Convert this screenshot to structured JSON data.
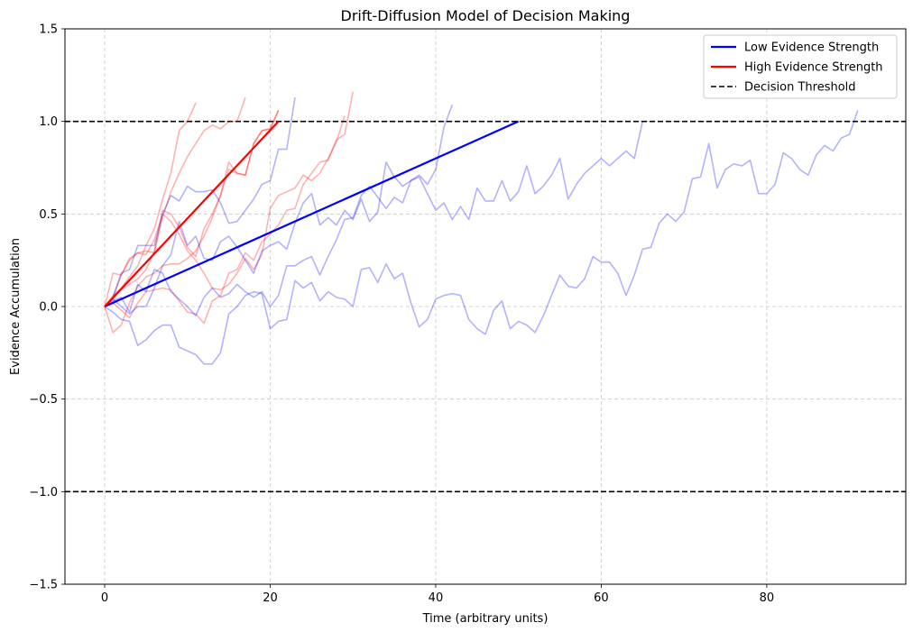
{
  "chart_data": {
    "type": "line",
    "title": "Drift-Diffusion Model of Decision Making",
    "xlabel": "Time (arbitrary units)",
    "ylabel": "Evidence Accumulation",
    "xlim": [
      -4.8,
      96.8
    ],
    "ylim": [
      -1.5,
      1.5
    ],
    "xticks": [
      0,
      20,
      40,
      60,
      80
    ],
    "yticks": [
      -1.5,
      -1.0,
      -0.5,
      0.0,
      0.5,
      1.0,
      1.5
    ],
    "xtick_labels": [
      "0",
      "20",
      "40",
      "60",
      "80"
    ],
    "ytick_labels": [
      "−1.5",
      "−1.0",
      "−0.5",
      "0.0",
      "0.5",
      "1.0",
      "1.5"
    ],
    "grid": true,
    "legend_position": "top-right",
    "colors": {
      "low": "#0000ff",
      "high": "#ff0000",
      "threshold": "#000000",
      "grid": "#b0b0b0"
    },
    "legend": [
      {
        "label": "Low Evidence Strength",
        "style": "solid",
        "color": "#0000ff"
      },
      {
        "label": "High Evidence Strength",
        "style": "solid",
        "color": "#ff0000"
      },
      {
        "label": "Decision Threshold",
        "style": "dashed",
        "color": "#000000"
      }
    ],
    "thresholds": [
      1.0,
      -1.0
    ],
    "mean_lines": [
      {
        "name": "Low Evidence Strength",
        "color": "#0000ff",
        "points": [
          [
            0,
            0
          ],
          [
            50,
            1.0
          ]
        ]
      },
      {
        "name": "High Evidence Strength",
        "color": "#ff0000",
        "points": [
          [
            0,
            0
          ],
          [
            21,
            1.0
          ]
        ]
      }
    ],
    "trials": [
      {
        "group": "high",
        "values": [
          0,
          0.05,
          0.17,
          0.26,
          0.29,
          0.3,
          0.29,
          0.52,
          0.5,
          0.43,
          0.32,
          0.27,
          0.42,
          0.5,
          0.6,
          0.74,
          0.72,
          0.71,
          0.88,
          0.95,
          0.96,
          1.06
        ]
      },
      {
        "group": "high",
        "values": [
          0,
          0.18,
          0.17,
          0.25,
          0.29,
          0.28,
          0.36,
          0.5,
          0.46,
          0.39,
          0.3,
          0.25,
          0.18,
          0.1,
          0.09,
          0.12,
          0.18,
          0.26,
          0.2,
          0.28,
          0.53,
          0.6,
          0.62,
          0.64,
          0.71,
          0.68,
          0.72,
          0.8,
          0.89,
          1.03
        ]
      },
      {
        "group": "high",
        "values": [
          0,
          -0.14,
          -0.1,
          0.02,
          0.11,
          0.16,
          0.18,
          0.22,
          0.23,
          0.23,
          0.26,
          0.3,
          0.38,
          0.48,
          0.6,
          0.78,
          0.72,
          0.71,
          0.88,
          0.95,
          0.96,
          1.06
        ]
      },
      {
        "group": "high",
        "values": [
          0,
          0.06,
          0.1,
          0.16,
          0.22,
          0.33,
          0.42,
          0.58,
          0.72,
          0.95,
          1.0,
          1.1
        ]
      },
      {
        "group": "high",
        "values": [
          0,
          0.04,
          0.09,
          0.12,
          0.15,
          0.2,
          0.3,
          0.48,
          0.62,
          0.72,
          0.81,
          0.88,
          0.95,
          0.98,
          0.96,
          1.0,
          1.0,
          1.13
        ]
      },
      {
        "group": "high",
        "values": [
          0,
          0.02,
          -0.02,
          -0.06,
          0.02,
          0.08,
          0.09,
          0.1,
          0.09,
          0.03,
          -0.03,
          -0.04,
          -0.09,
          0.03,
          0.06,
          0.18,
          0.2,
          0.29,
          0.25,
          0.35,
          0.39,
          0.44,
          0.52,
          0.53,
          0.66,
          0.72,
          0.78,
          0.79,
          0.9,
          0.93,
          1.16
        ]
      },
      {
        "group": "low",
        "values": [
          0,
          0.05,
          0.18,
          0.2,
          0.33,
          0.33,
          0.33,
          0.5,
          0.6,
          0.57,
          0.65,
          0.62,
          0.62,
          0.63,
          0.56,
          0.45,
          0.46,
          0.52,
          0.58,
          0.66,
          0.68,
          0.85,
          0.85,
          1.13
        ]
      },
      {
        "group": "low",
        "values": [
          0,
          0.04,
          0.0,
          -0.04,
          0.0,
          0.0,
          0.1,
          0.22,
          0.28,
          0.46,
          0.33,
          0.38,
          0.26,
          0.25,
          0.35,
          0.38,
          0.32,
          0.25,
          0.18,
          0.3,
          0.33,
          0.35,
          0.31,
          0.45,
          0.56,
          0.61,
          0.44,
          0.48,
          0.44,
          0.52,
          0.47,
          0.58,
          0.46,
          0.51,
          0.78,
          0.7,
          0.65,
          0.68,
          0.71,
          0.66,
          0.74,
          0.97,
          1.09
        ]
      },
      {
        "group": "low",
        "values": [
          0,
          -0.03,
          -0.07,
          -0.08,
          -0.21,
          -0.18,
          -0.13,
          -0.1,
          -0.1,
          -0.22,
          -0.24,
          -0.26,
          -0.31,
          -0.31,
          -0.25,
          -0.04,
          0.0,
          0.06,
          0.08,
          0.07,
          -0.12,
          -0.08,
          -0.07,
          0.14,
          0.1,
          0.13,
          0.03,
          0.08,
          0.05,
          0.04,
          0.0,
          0.2,
          0.21,
          0.13,
          0.23,
          0.15,
          0.18,
          0.02,
          -0.11,
          -0.07,
          0.04,
          0.06,
          0.07,
          0.06,
          -0.07,
          -0.12,
          -0.15,
          -0.02,
          0.03,
          -0.12,
          -0.08,
          -0.1,
          -0.14,
          -0.05,
          0.06,
          0.17,
          0.11,
          0.1,
          0.15,
          0.27,
          0.24,
          0.24,
          0.18,
          0.06,
          0.17,
          0.31,
          0.32,
          0.45,
          0.5,
          0.46,
          0.51,
          0.69,
          0.7,
          0.88,
          0.64,
          0.74,
          0.77,
          0.76,
          0.79,
          0.61,
          0.61,
          0.66,
          0.83,
          0.8,
          0.74,
          0.71,
          0.82,
          0.87,
          0.84,
          0.91,
          0.93,
          1.06
        ]
      },
      {
        "group": "low",
        "values": [
          0,
          0.03,
          0.05,
          -0.03,
          0.12,
          0.08,
          0.2,
          0.18,
          0.08,
          0.04,
          0.0,
          -0.05,
          0.05,
          0.1,
          0.05,
          0.07,
          0.12,
          0.08,
          0.05,
          0.08,
          0.0,
          0.06,
          0.22,
          0.22,
          0.25,
          0.27,
          0.17,
          0.27,
          0.36,
          0.47,
          0.48,
          0.6,
          0.65,
          0.59,
          0.53,
          0.59,
          0.56,
          0.68,
          0.7,
          0.61,
          0.52,
          0.56,
          0.47,
          0.54,
          0.47,
          0.64,
          0.57,
          0.57,
          0.68,
          0.57,
          0.62,
          0.76,
          0.61,
          0.65,
          0.71,
          0.8,
          0.58,
          0.66,
          0.72,
          0.76,
          0.8,
          0.76,
          0.8,
          0.84,
          0.8,
          1.0
        ]
      }
    ]
  }
}
